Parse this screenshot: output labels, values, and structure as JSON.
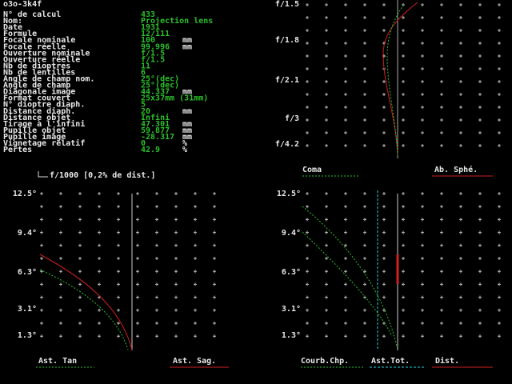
{
  "title": "o3o-3k4f",
  "fields": [
    {
      "label": "N° de calcul",
      "value": "433"
    },
    {
      "label": "Nom:",
      "value": "Projection lens"
    },
    {
      "label": "Date",
      "value": "1931"
    },
    {
      "label": "Formule",
      "value": "12/111"
    },
    {
      "label": "Focale nominale",
      "value": "100",
      "unit": "mm"
    },
    {
      "label": "Focale réelle",
      "value": "99.996",
      "unit": "mm"
    },
    {
      "label": "Ouverture nominale",
      "value": "f/1.5"
    },
    {
      "label": "Ouverture réelle",
      "value": "f/1.5"
    },
    {
      "label": "Nb de dioptres",
      "value": "11"
    },
    {
      "label": "Nb de lentilles",
      "value": "6"
    },
    {
      "label": "Angle de champ nom.",
      "value": "25°(dec)"
    },
    {
      "label": "Angle de champ",
      "value": "25°(dec)"
    },
    {
      "label": "Diagonale image",
      "value": "44.337",
      "unit": "mm"
    },
    {
      "label": "Format couvert",
      "value": "25x37mm (31mm)"
    },
    {
      "label": "N° dioptre diaph.",
      "value": "5"
    },
    {
      "label": "Distance diaph.",
      "value": "20",
      "unit": "mm"
    },
    {
      "label": "Distance objet",
      "value": "Infini"
    },
    {
      "label": "Tirage à l'infini",
      "value": "47.301",
      "unit": "mm"
    },
    {
      "label": "Pupille objet",
      "value": "59.877",
      "unit": "mm"
    },
    {
      "label": "Pupille image",
      "value": "-28.317",
      "unit": "mm"
    },
    {
      "label": "Vignetage relatif",
      "value": "0",
      "unit": "%"
    },
    {
      "label": "Pertes",
      "value": "42.9",
      "unit": "%"
    }
  ],
  "coma_plot": {
    "y_labels": [
      "f/1.5",
      "f/1.8",
      "f/2.1",
      "f/3",
      "f/4.2"
    ],
    "legend": [
      "Coma",
      "Ab. Sphé."
    ]
  },
  "scale_note": "f/1000 [0,2% de dist.]",
  "astig_plot": {
    "y_labels": [
      "12.5°",
      "9.4°",
      "6.3°",
      "3.1°",
      "1.3°"
    ],
    "legend": [
      "Ast. Tan",
      "Ast. Sag."
    ]
  },
  "field_plot": {
    "y_labels": [
      "12.5°",
      "9.4°",
      "6.3°",
      "3.1°",
      "1.3°"
    ],
    "legend": [
      "Courb.Chp.",
      "Ast.Tot.",
      "Dist."
    ]
  }
}
